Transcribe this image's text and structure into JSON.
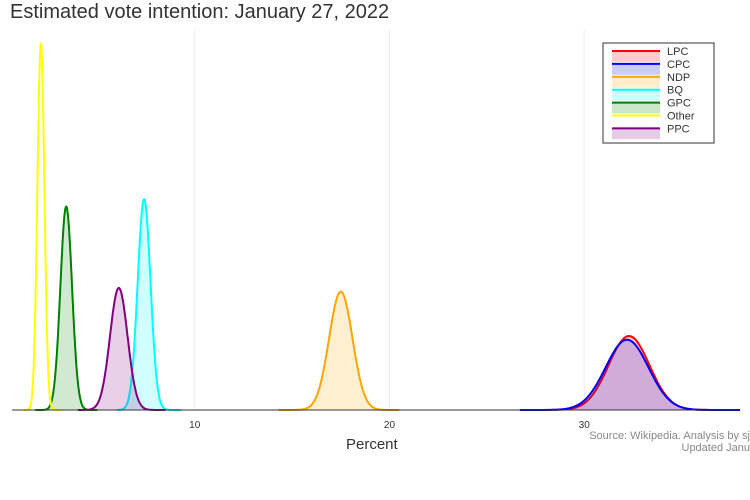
{
  "chart_data": {
    "type": "area",
    "title": "Estimated vote intention: January 27, 2022",
    "xlabel": "Percent",
    "ylabel": "",
    "xlim": [
      0,
      38
    ],
    "xticks": [
      10,
      20,
      30
    ],
    "grid": true,
    "legend_position": "top-right",
    "series": [
      {
        "name": "LPC",
        "color": "#ff0000",
        "mean": 32.3,
        "sd": 1.05,
        "peak": 0.2,
        "range": [
          27.5,
          37.5
        ],
        "filled": true
      },
      {
        "name": "CPC",
        "color": "#0000ff",
        "mean": 32.2,
        "sd": 1.1,
        "peak": 0.19,
        "range": [
          26.7,
          38.0
        ],
        "filled": true
      },
      {
        "name": "NDP",
        "color": "#ffa500",
        "mean": 17.5,
        "sd": 0.6,
        "peak": 0.32,
        "range": [
          14.3,
          20.5
        ],
        "filled": true
      },
      {
        "name": "BQ",
        "color": "#00ffff",
        "mean": 7.4,
        "sd": 0.33,
        "peak": 0.57,
        "range": [
          6.0,
          9.3
        ],
        "filled": true
      },
      {
        "name": "GPC",
        "color": "#008000",
        "mean": 3.4,
        "sd": 0.3,
        "peak": 0.55,
        "range": [
          1.8,
          5.0
        ],
        "filled": true
      },
      {
        "name": "Other",
        "color": "#ffff00",
        "mean": 2.1,
        "sd": 0.18,
        "peak": 0.99,
        "range": [
          1.2,
          3.2
        ],
        "filled": false
      },
      {
        "name": "PPC",
        "color": "#800080",
        "mean": 6.1,
        "sd": 0.45,
        "peak": 0.33,
        "range": [
          4.0,
          8.5
        ],
        "filled": true
      }
    ]
  },
  "source": {
    "line1": "Source: Wikipedia. Analysis by sj",
    "line2": "Updated Janu"
  }
}
